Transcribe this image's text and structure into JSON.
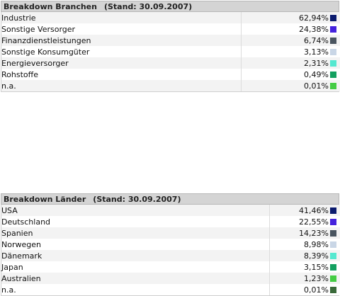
{
  "branchen": {
    "title": "Breakdown Branchen",
    "stand": "(Stand: 30.09.2007)",
    "rows": [
      {
        "name": "Industrie",
        "pct": "62,94%",
        "color": "#0a1a6e"
      },
      {
        "name": "Sonstige Versorger",
        "pct": "24,38%",
        "color": "#4422dd"
      },
      {
        "name": "Finanzdienstleistungen",
        "pct": "6,74%",
        "color": "#4a5560"
      },
      {
        "name": "Sonstige Konsumgüter",
        "pct": "3,13%",
        "color": "#c9d6e6"
      },
      {
        "name": "Energieversorger",
        "pct": "2,31%",
        "color": "#55e8d0"
      },
      {
        "name": "Rohstoffe",
        "pct": "0,49%",
        "color": "#14a060"
      },
      {
        "name": "n.a.",
        "pct": "0,01%",
        "color": "#44cc44"
      }
    ]
  },
  "laender": {
    "title": "Breakdown Länder",
    "stand": "(Stand: 30.09.2007)",
    "rows": [
      {
        "name": "USA",
        "pct": "41,46%",
        "color": "#0a1a6e"
      },
      {
        "name": "Deutschland",
        "pct": "22,55%",
        "color": "#4422dd"
      },
      {
        "name": "Spanien",
        "pct": "14,23%",
        "color": "#4a5560"
      },
      {
        "name": "Norwegen",
        "pct": "8,98%",
        "color": "#c9d6e6"
      },
      {
        "name": "Dänemark",
        "pct": "8,39%",
        "color": "#55e8d0"
      },
      {
        "name": "Japan",
        "pct": "3,15%",
        "color": "#14a060"
      },
      {
        "name": "Australien",
        "pct": "1,23%",
        "color": "#44cc44"
      },
      {
        "name": "n.a.",
        "pct": "0,01%",
        "color": "#3a6a3a"
      }
    ]
  }
}
